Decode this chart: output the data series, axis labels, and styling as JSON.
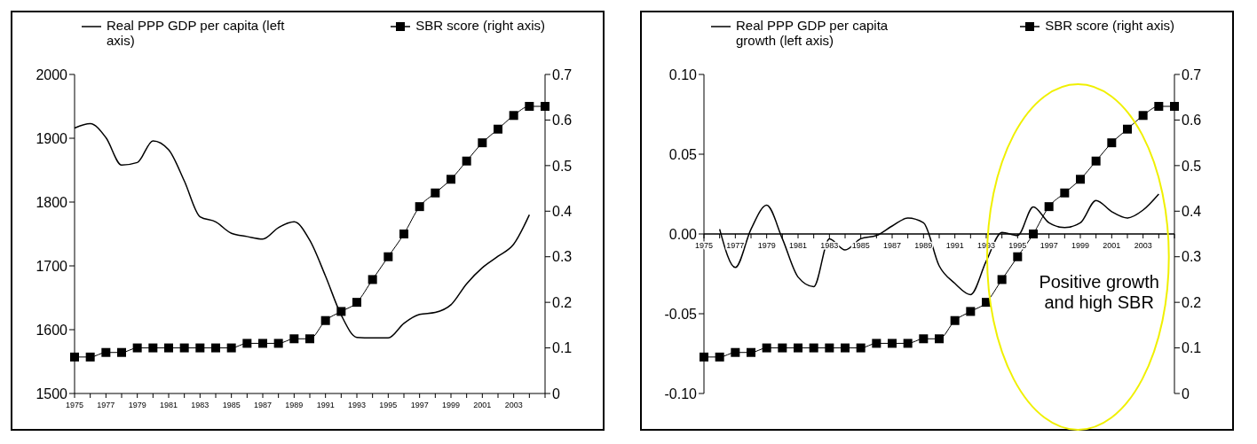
{
  "chart_data": [
    {
      "type": "line",
      "categories": [
        "1975",
        null,
        "1977",
        null,
        "1979",
        null,
        "1981",
        null,
        "1983",
        null,
        "1985",
        null,
        "1987",
        null,
        "1989",
        null,
        "1991",
        null,
        "1993",
        null,
        "1995",
        null,
        "1997",
        null,
        "1999",
        null,
        "2001",
        null,
        "2003",
        null,
        null
      ],
      "series": [
        {
          "name": "Real PPP GDP per capita (left axis)",
          "color": "#000000",
          "marker": "none",
          "values": [
            1916,
            1923,
            1901,
            1858,
            1862,
            1896,
            1882,
            1833,
            1777,
            1769,
            1751,
            1746,
            1742,
            1760,
            1769,
            1740,
            1684,
            1623,
            1588,
            1587,
            1587,
            1610,
            1624,
            1627,
            1639,
            1672,
            1697,
            1715,
            1734,
            1780,
            null
          ]
        },
        {
          "name": "SBR score (right axis)",
          "color": "#000000",
          "marker": "square",
          "axis": "y2",
          "values": [
            0.08,
            0.08,
            0.09,
            0.09,
            0.1,
            0.1,
            0.1,
            0.1,
            0.1,
            0.1,
            0.1,
            0.11,
            0.11,
            0.11,
            0.12,
            0.12,
            0.16,
            0.18,
            0.2,
            0.25,
            0.3,
            0.35,
            0.41,
            0.44,
            0.47,
            0.51,
            0.55,
            0.58,
            0.61,
            0.63,
            0.63
          ]
        }
      ],
      "ylim": [
        1500,
        2000
      ],
      "yticks": [
        1500,
        1600,
        1700,
        1800,
        1900,
        2000
      ],
      "y2lim": [
        0,
        0.7
      ],
      "y2ticks": [
        0,
        0.1,
        0.2,
        0.3,
        0.4,
        0.5,
        0.6,
        0.7
      ],
      "legend": "top",
      "grid": false
    },
    {
      "type": "line",
      "categories": [
        "1975",
        null,
        "1977",
        null,
        "1979",
        null,
        "1981",
        null,
        "1983",
        null,
        "1985",
        null,
        "1987",
        null,
        "1989",
        null,
        "1991",
        null,
        "1993",
        null,
        "1995",
        null,
        "1997",
        null,
        "1999",
        null,
        "2001",
        null,
        "2003",
        null,
        null
      ],
      "series": [
        {
          "name": "Real PPP GDP per capita growth (left axis)",
          "color": "#000000",
          "marker": "none",
          "values": [
            null,
            0.003,
            -0.021,
            0.003,
            0.018,
            -0.003,
            -0.027,
            -0.033,
            -0.003,
            -0.01,
            -0.003,
            -0.001,
            0.005,
            0.01,
            0.007,
            -0.02,
            -0.031,
            -0.038,
            -0.017,
            0.001,
            -0.001,
            0.017,
            0.007,
            0.004,
            0.007,
            0.021,
            0.014,
            0.01,
            0.015,
            0.025,
            null
          ]
        },
        {
          "name": "SBR score (right axis)",
          "color": "#000000",
          "marker": "square",
          "axis": "y2",
          "values": [
            0.08,
            0.08,
            0.09,
            0.09,
            0.1,
            0.1,
            0.1,
            0.1,
            0.1,
            0.1,
            0.1,
            0.11,
            0.11,
            0.11,
            0.12,
            0.12,
            0.16,
            0.18,
            0.2,
            0.25,
            0.3,
            0.35,
            0.41,
            0.44,
            0.47,
            0.51,
            0.55,
            0.58,
            0.61,
            0.63,
            0.63
          ]
        }
      ],
      "ylim": [
        -0.1,
        0.1
      ],
      "yticks": [
        {
          "value": -0.1,
          "label": "-0.10"
        },
        {
          "value": -0.05,
          "label": "-0.05"
        },
        {
          "value": 0,
          "label": "0.00"
        },
        {
          "value": 0.05,
          "label": "0.05"
        },
        {
          "value": 0.1,
          "label": "0.10"
        }
      ],
      "y2lim": [
        0,
        0.7
      ],
      "y2ticks": [
        0,
        0.1,
        0.2,
        0.3,
        0.4,
        0.5,
        0.6,
        0.7
      ],
      "legend": "top",
      "grid": false,
      "annotations": [
        "Positive growth and high SBR"
      ]
    }
  ]
}
